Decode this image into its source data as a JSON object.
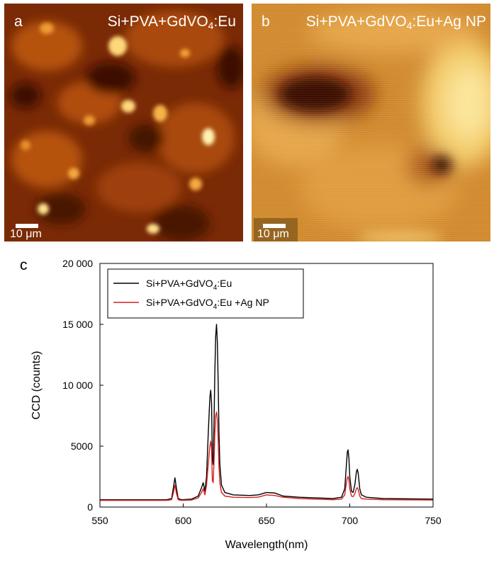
{
  "panel_a": {
    "letter": "a",
    "title_main": "Si+PVA+GdVO",
    "title_sub": "4",
    "title_tail": ":Eu",
    "scale": "10 μm"
  },
  "panel_b": {
    "letter": "b",
    "title_main": "Si+PVA+GdVO",
    "title_sub": "4",
    "title_tail": ":Eu+Ag NP",
    "scale": "10 μm"
  },
  "panel_c": {
    "letter": "c"
  },
  "chart_data": {
    "type": "line",
    "title": "",
    "xlabel": "Wavelength(nm)",
    "ylabel": "CCD (counts)",
    "xlim": [
      550,
      750
    ],
    "ylim": [
      0,
      20000
    ],
    "xticks": [
      550,
      600,
      650,
      700,
      750
    ],
    "yticks": [
      0,
      5000,
      10000,
      15000,
      20000
    ],
    "xtick_labels": [
      "550",
      "600",
      "650",
      "700",
      "750"
    ],
    "ytick_labels": [
      "0",
      "5000",
      "10 000",
      "15 000",
      "20 000"
    ],
    "legend_position": "top-left",
    "series": [
      {
        "name": "Si+PVA+GdVO4:Eu",
        "legend_main": "Si+PVA+GdVO",
        "legend_sub": "4",
        "legend_tail": ":Eu",
        "color": "#000000",
        "x": [
          550,
          590,
          593,
          594,
          595,
          596,
          597,
          599,
          605,
          609,
          611,
          612,
          613,
          614,
          615,
          616,
          616.5,
          617,
          617.5,
          618,
          618.5,
          619,
          619.5,
          620,
          620.5,
          621,
          621.5,
          622,
          623,
          625,
          630,
          640,
          645,
          650,
          655,
          660,
          670,
          690,
          695,
          697,
          698,
          698.5,
          699,
          699.5,
          700,
          701,
          702,
          703,
          704,
          704.5,
          705,
          706,
          707,
          710,
          720,
          750
        ],
        "y": [
          600,
          600,
          700,
          1500,
          2400,
          1500,
          700,
          600,
          650,
          900,
          1600,
          2000,
          1300,
          2500,
          6000,
          9000,
          9600,
          8500,
          4000,
          3500,
          7000,
          11000,
          14000,
          15000,
          13500,
          10000,
          6000,
          3500,
          1800,
          1200,
          1000,
          950,
          1000,
          1200,
          1150,
          900,
          800,
          700,
          800,
          1500,
          3500,
          4500,
          4700,
          4000,
          2500,
          1300,
          1200,
          1800,
          2900,
          3100,
          2800,
          1500,
          1000,
          800,
          700,
          650
        ]
      },
      {
        "name": "Si+PVA+GdVO4:Eu +Ag NP",
        "legend_main": "Si+PVA+GdVO",
        "legend_sub": "4",
        "legend_tail": ":Eu +Ag NP",
        "color": "#d42020",
        "x": [
          550,
          590,
          593,
          594,
          595,
          596,
          597,
          599,
          605,
          609,
          611,
          612,
          613,
          614,
          615,
          616,
          616.5,
          617,
          617.5,
          618,
          618.5,
          619,
          619.5,
          620,
          620.5,
          621,
          621.5,
          622,
          623,
          625,
          630,
          640,
          645,
          650,
          655,
          660,
          670,
          690,
          695,
          697,
          698,
          698.5,
          699,
          699.5,
          700,
          701,
          702,
          703,
          704,
          704.5,
          705,
          706,
          707,
          710,
          720,
          750
        ],
        "y": [
          550,
          550,
          600,
          1100,
          1800,
          1100,
          600,
          550,
          580,
          750,
          1200,
          1500,
          1000,
          1800,
          3500,
          5000,
          5400,
          4800,
          2200,
          2000,
          3800,
          6000,
          7500,
          7800,
          7200,
          5500,
          3300,
          2000,
          1200,
          900,
          800,
          780,
          820,
          1000,
          950,
          800,
          700,
          600,
          650,
          1000,
          2000,
          2400,
          2500,
          2200,
          1500,
          900,
          850,
          1100,
          1500,
          1600,
          1450,
          900,
          700,
          650,
          600,
          580
        ]
      }
    ]
  }
}
